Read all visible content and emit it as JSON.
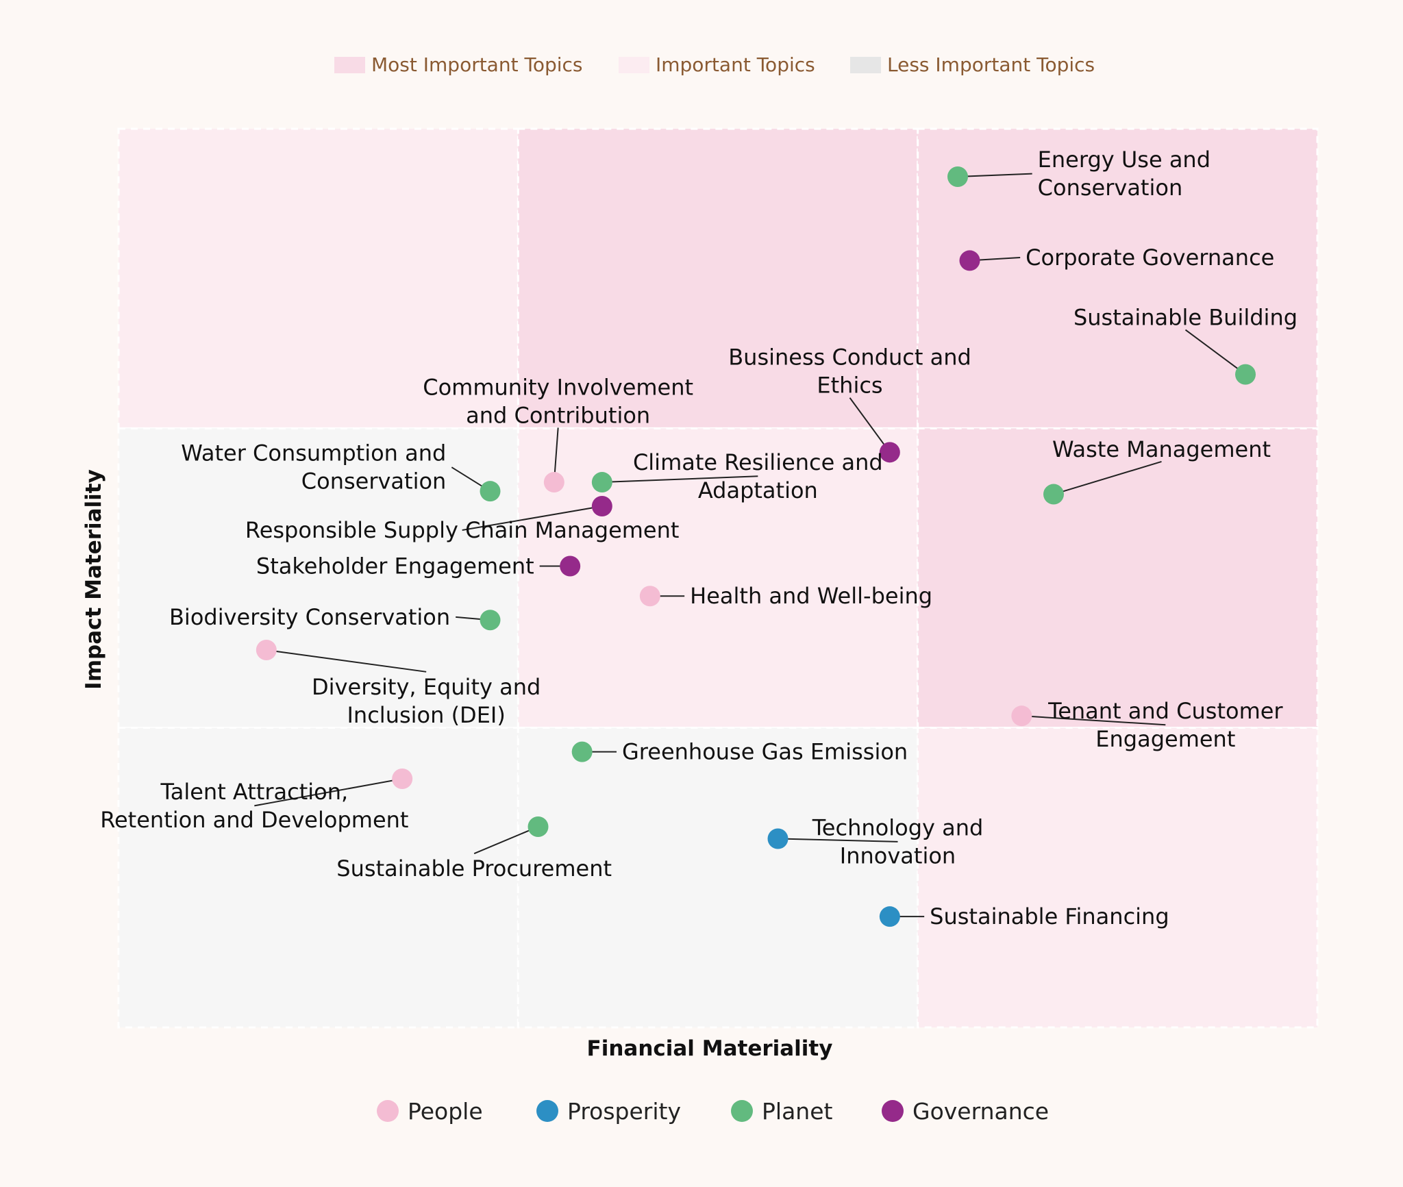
{
  "chart_data": {
    "type": "scatter",
    "xlabel": "Financial Materiality",
    "ylabel": "Impact Materiality",
    "xlim": [
      0,
      3
    ],
    "ylim": [
      0,
      3
    ],
    "zone_legend": [
      {
        "label": "Most Important Topics",
        "color": "#f8dbe6"
      },
      {
        "label": "Important Topics",
        "color": "#fcecf1"
      },
      {
        "label": "Less Important Topics",
        "color": "#e6e6e6"
      }
    ],
    "zones": [
      {
        "col": 0,
        "row": 0,
        "level": "important"
      },
      {
        "col": 1,
        "row": 0,
        "level": "most"
      },
      {
        "col": 2,
        "row": 0,
        "level": "most"
      },
      {
        "col": 0,
        "row": 1,
        "level": "less"
      },
      {
        "col": 1,
        "row": 1,
        "level": "important"
      },
      {
        "col": 2,
        "row": 1,
        "level": "most"
      },
      {
        "col": 0,
        "row": 2,
        "level": "less"
      },
      {
        "col": 1,
        "row": 2,
        "level": "less"
      },
      {
        "col": 2,
        "row": 2,
        "level": "important"
      }
    ],
    "zone_colors": {
      "most": "#f8dbe6",
      "important": "#fcecf1",
      "less": "#f6f6f6"
    },
    "categories": [
      {
        "name": "People",
        "color": "#f4bcd3"
      },
      {
        "name": "Prosperity",
        "color": "#2c8fc4"
      },
      {
        "name": "Planet",
        "color": "#62ba7f"
      },
      {
        "name": "Governance",
        "color": "#952a8a"
      }
    ],
    "points": [
      {
        "label": [
          "Energy Use and",
          "Conservation"
        ],
        "category": "Planet",
        "x": 2.1,
        "y": 2.84,
        "anchor": "start",
        "dx": 0.2,
        "dy": 0.01
      },
      {
        "label": [
          "Corporate Governance"
        ],
        "category": "Governance",
        "x": 2.13,
        "y": 2.56,
        "anchor": "start",
        "dx": 0.14,
        "dy": 0.01
      },
      {
        "label": [
          "Sustainable Building"
        ],
        "category": "Planet",
        "x": 2.82,
        "y": 2.18,
        "anchor": "middle",
        "dx": -0.15,
        "dy": 0.19
      },
      {
        "label": [
          "Business Conduct and",
          "Ethics"
        ],
        "category": "Governance",
        "x": 1.93,
        "y": 1.92,
        "anchor": "middle",
        "dx": -0.1,
        "dy": 0.27
      },
      {
        "label": [
          "Community Involvement",
          "and Contribution"
        ],
        "category": "People",
        "x": 1.09,
        "y": 1.82,
        "anchor": "middle",
        "dx": 0.01,
        "dy": 0.27
      },
      {
        "label": [
          "Water Consumption and",
          "Conservation"
        ],
        "category": "Planet",
        "x": 0.93,
        "y": 1.79,
        "anchor": "end",
        "dx": -0.11,
        "dy": 0.08
      },
      {
        "label": [
          "Climate Resilience and",
          "Adaptation"
        ],
        "category": "Planet",
        "x": 1.21,
        "y": 1.82,
        "anchor": "middle",
        "dx": 0.39,
        "dy": 0.02
      },
      {
        "label": [
          "Responsible Supply Chain Management"
        ],
        "category": "Governance",
        "x": 1.21,
        "y": 1.74,
        "anchor": "middle",
        "dx": -0.35,
        "dy": -0.08
      },
      {
        "label": [
          "Stakeholder Engagement"
        ],
        "category": "Governance",
        "x": 1.13,
        "y": 1.54,
        "anchor": "end",
        "dx": -0.09,
        "dy": 0.0
      },
      {
        "label": [
          "Health and Well-being"
        ],
        "category": "People",
        "x": 1.33,
        "y": 1.44,
        "anchor": "start",
        "dx": 0.1,
        "dy": 0.0
      },
      {
        "label": [
          "Biodiversity Conservation"
        ],
        "category": "Planet",
        "x": 0.93,
        "y": 1.36,
        "anchor": "end",
        "dx": -0.1,
        "dy": 0.01
      },
      {
        "label": [
          "Diversity, Equity and",
          "Inclusion (DEI)"
        ],
        "category": "People",
        "x": 0.37,
        "y": 1.26,
        "anchor": "middle",
        "dx": 0.4,
        "dy": -0.17
      },
      {
        "label": [
          "Waste Management"
        ],
        "category": "Planet",
        "x": 2.34,
        "y": 1.78,
        "anchor": "middle",
        "dx": 0.27,
        "dy": 0.15
      },
      {
        "label": [
          "Tenant and Customer",
          "Engagement"
        ],
        "category": "People",
        "x": 2.26,
        "y": 1.04,
        "anchor": "middle",
        "dx": 0.36,
        "dy": -0.03
      },
      {
        "label": [
          "Greenhouse Gas Emission"
        ],
        "category": "Planet",
        "x": 1.16,
        "y": 0.92,
        "anchor": "start",
        "dx": 0.1,
        "dy": 0.0
      },
      {
        "label": [
          "Talent Attraction,",
          "Retention and Development"
        ],
        "category": "People",
        "x": 0.71,
        "y": 0.83,
        "anchor": "middle",
        "dx": -0.37,
        "dy": -0.09
      },
      {
        "label": [
          "Sustainable Procurement"
        ],
        "category": "Planet",
        "x": 1.05,
        "y": 0.67,
        "anchor": "middle",
        "dx": -0.16,
        "dy": -0.14
      },
      {
        "label": [
          "Technology and",
          "Innovation"
        ],
        "category": "Prosperity",
        "x": 1.65,
        "y": 0.63,
        "anchor": "middle",
        "dx": 0.3,
        "dy": -0.01
      },
      {
        "label": [
          "Sustainable Financing"
        ],
        "category": "Prosperity",
        "x": 1.93,
        "y": 0.37,
        "anchor": "start",
        "dx": 0.1,
        "dy": 0.0
      }
    ]
  }
}
